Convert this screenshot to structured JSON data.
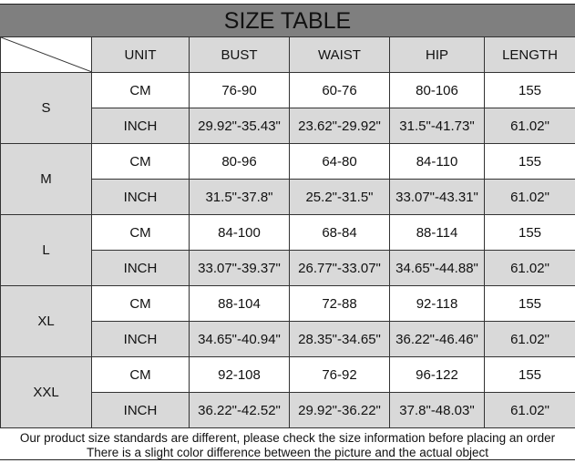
{
  "title": "SIZE TABLE",
  "headers": [
    "UNIT",
    "BUST",
    "WAIST",
    "HIP",
    "LENGTH"
  ],
  "sizes": [
    {
      "size": "S",
      "rows": [
        [
          "CM",
          "76-90",
          "60-76",
          "80-106",
          "155"
        ],
        [
          "INCH",
          "29.92\"-35.43\"",
          "23.62\"-29.92\"",
          "31.5\"-41.73\"",
          "61.02\""
        ]
      ]
    },
    {
      "size": "M",
      "rows": [
        [
          "CM",
          "80-96",
          "64-80",
          "84-110",
          "155"
        ],
        [
          "INCH",
          "31.5\"-37.8\"",
          "25.2\"-31.5\"",
          "33.07\"-43.31\"",
          "61.02\""
        ]
      ]
    },
    {
      "size": "L",
      "rows": [
        [
          "CM",
          "84-100",
          "68-84",
          "88-114",
          "155"
        ],
        [
          "INCH",
          "33.07\"-39.37\"",
          "26.77\"-33.07\"",
          "34.65\"-44.88\"",
          "61.02\""
        ]
      ]
    },
    {
      "size": "XL",
      "rows": [
        [
          "CM",
          "88-104",
          "72-88",
          "92-118",
          "155"
        ],
        [
          "INCH",
          "34.65\"-40.94\"",
          "28.35\"-34.65\"",
          "36.22\"-46.46\"",
          "61.02\""
        ]
      ]
    },
    {
      "size": "XXL",
      "rows": [
        [
          "CM",
          "92-108",
          "76-92",
          "96-122",
          "155"
        ],
        [
          "INCH",
          "36.22\"-42.52\"",
          "29.92\"-36.22\"",
          "37.8\"-48.03\"",
          "61.02\""
        ]
      ]
    }
  ],
  "footer": [
    "Our product size standards are different, please check the size information before placing an order",
    "There is a slight color difference between the picture and the actual object"
  ],
  "colors": {
    "title_bg": "#7f7f7f",
    "shaded": "#d9d9d9"
  }
}
